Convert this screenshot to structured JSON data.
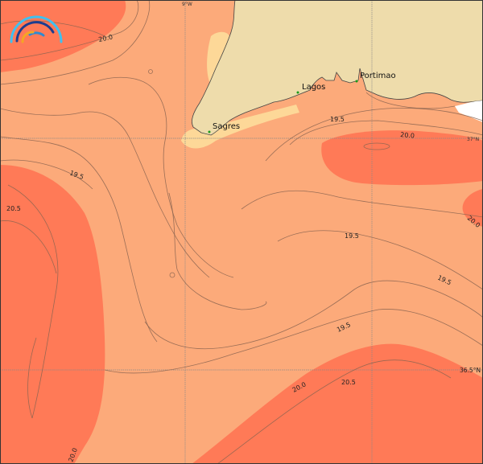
{
  "colors": {
    "land": "#eedcab",
    "cool_band": "#fdd898",
    "mid_band": "#fcaa7a",
    "warm_band": "#ff7a57",
    "no_data": "#ffffff",
    "contour": "#8a6450"
  },
  "logo": {
    "icon": "rainbow-arcs-logo"
  },
  "places": [
    {
      "name": "Sagres"
    },
    {
      "name": "Lagos"
    },
    {
      "name": "Portimao"
    }
  ],
  "axes": {
    "lon_label": "9°W",
    "lat_labels": [
      "37°N",
      "36.5°N"
    ]
  },
  "contour_labels": [
    "20.0",
    "19.5",
    "20.5",
    "19.5",
    "20.0",
    "20.0",
    "19.5",
    "19.5",
    "19.5",
    "20.0",
    "20.5",
    "20.0"
  ]
}
